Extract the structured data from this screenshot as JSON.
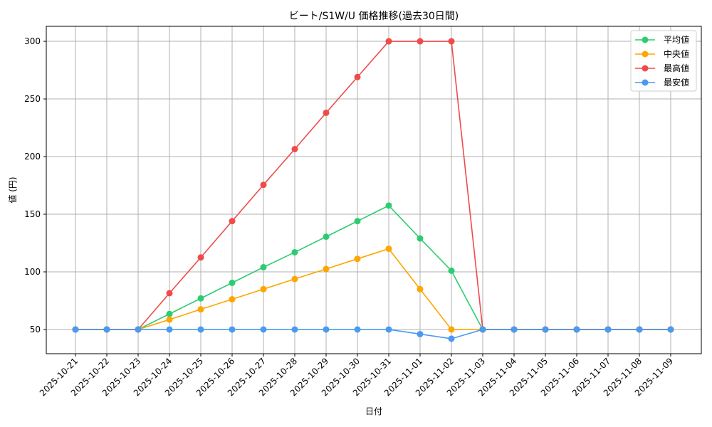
{
  "chart_data": {
    "type": "line",
    "title": "ビート/S1W/U 価格推移(過去30日間)",
    "xlabel": "日付",
    "ylabel": "値 (円)",
    "ylim": [
      29,
      313
    ],
    "yticks": [
      50,
      100,
      150,
      200,
      250,
      300
    ],
    "grid": true,
    "legend_position": "top-right",
    "categories": [
      "2025-10-21",
      "2025-10-22",
      "2025-10-23",
      "2025-10-24",
      "2025-10-25",
      "2025-10-26",
      "2025-10-27",
      "2025-10-28",
      "2025-10-29",
      "2025-10-30",
      "2025-10-31",
      "2025-11-01",
      "2025-11-02",
      "2025-11-03",
      "2025-11-04",
      "2025-11-05",
      "2025-11-06",
      "2025-11-07",
      "2025-11-08",
      "2025-11-09"
    ],
    "series": [
      {
        "name": "平均値",
        "color": "#2ecc71",
        "values": [
          50,
          50,
          50,
          63.5,
          77,
          90.5,
          104,
          117,
          130.5,
          144,
          157.5,
          129,
          101,
          50,
          50,
          50,
          50,
          50,
          50,
          50
        ]
      },
      {
        "name": "中央値",
        "color": "#ffa500",
        "values": [
          50,
          50,
          50,
          58.6,
          67.5,
          76.2,
          85,
          93.8,
          102.5,
          111.3,
          120,
          85,
          50,
          50,
          50,
          50,
          50,
          50,
          50,
          50
        ]
      },
      {
        "name": "最高値",
        "color": "#f04a4a",
        "values": [
          50,
          50,
          50,
          81.5,
          112.5,
          144,
          175.5,
          206.5,
          238,
          269,
          300,
          300,
          300,
          50,
          50,
          50,
          50,
          50,
          50,
          50
        ]
      },
      {
        "name": "最安値",
        "color": "#4a9af0",
        "values": [
          50,
          50,
          50,
          50,
          50,
          50,
          50,
          50,
          50,
          50,
          50,
          46,
          42,
          50,
          50,
          50,
          50,
          50,
          50,
          50
        ]
      }
    ]
  }
}
